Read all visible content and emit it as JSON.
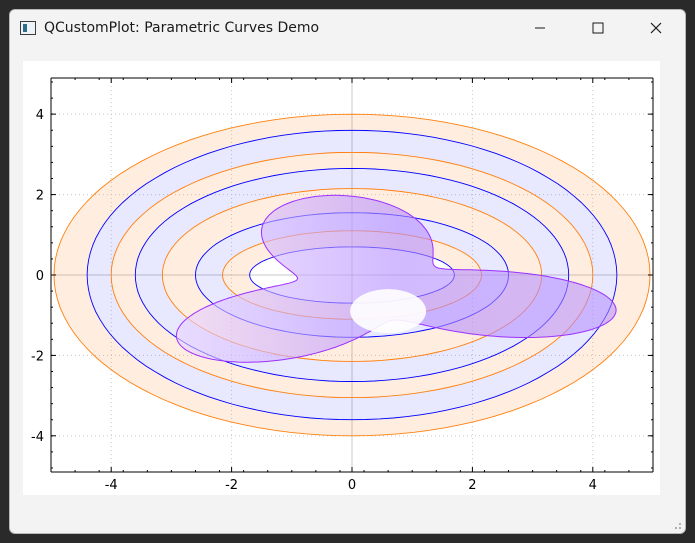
{
  "window": {
    "title": "QCustomPlot: Parametric Curves Demo",
    "icon": "app-window-icon",
    "controls": [
      "minimize-icon",
      "maximize-icon",
      "close-icon"
    ]
  },
  "chart_data": {
    "type": "line",
    "title": "",
    "xlabel": "",
    "ylabel": "",
    "xlim": [
      -5,
      5
    ],
    "ylim": [
      -4.9,
      4.9
    ],
    "x_ticks": [
      -4,
      -2,
      0,
      2,
      4
    ],
    "y_ticks": [
      4,
      2,
      0,
      -2,
      -4
    ],
    "grid": true,
    "series": [
      {
        "kind": "spiral-band",
        "colors": {
          "outer": "#ff7f0e",
          "inner": "#0000ff",
          "fill_outer": "#ff7f0e",
          "fill_inner": "#0000ff"
        },
        "curves": [
          {
            "color": "#ff7f0e",
            "a": 4.95,
            "b": 4.0
          },
          {
            "color": "#0000ff",
            "a": 4.4,
            "b": 3.6
          },
          {
            "color": "#ff7f0e",
            "a": 4.0,
            "b": 3.05
          },
          {
            "color": "#0000ff",
            "a": 3.6,
            "b": 2.65
          },
          {
            "color": "#ff7f0e",
            "a": 3.15,
            "b": 2.15
          },
          {
            "color": "#0000ff",
            "a": 2.6,
            "b": 1.55
          },
          {
            "color": "#ff7f0e",
            "a": 2.15,
            "b": 1.1
          },
          {
            "color": "#0000ff",
            "a": 1.7,
            "b": 0.7
          }
        ]
      },
      {
        "kind": "trefoil",
        "color": "#9b30ff",
        "fill_gradient": [
          "#e9d4ff",
          "#b48cff",
          "#ffffff"
        ]
      }
    ]
  }
}
